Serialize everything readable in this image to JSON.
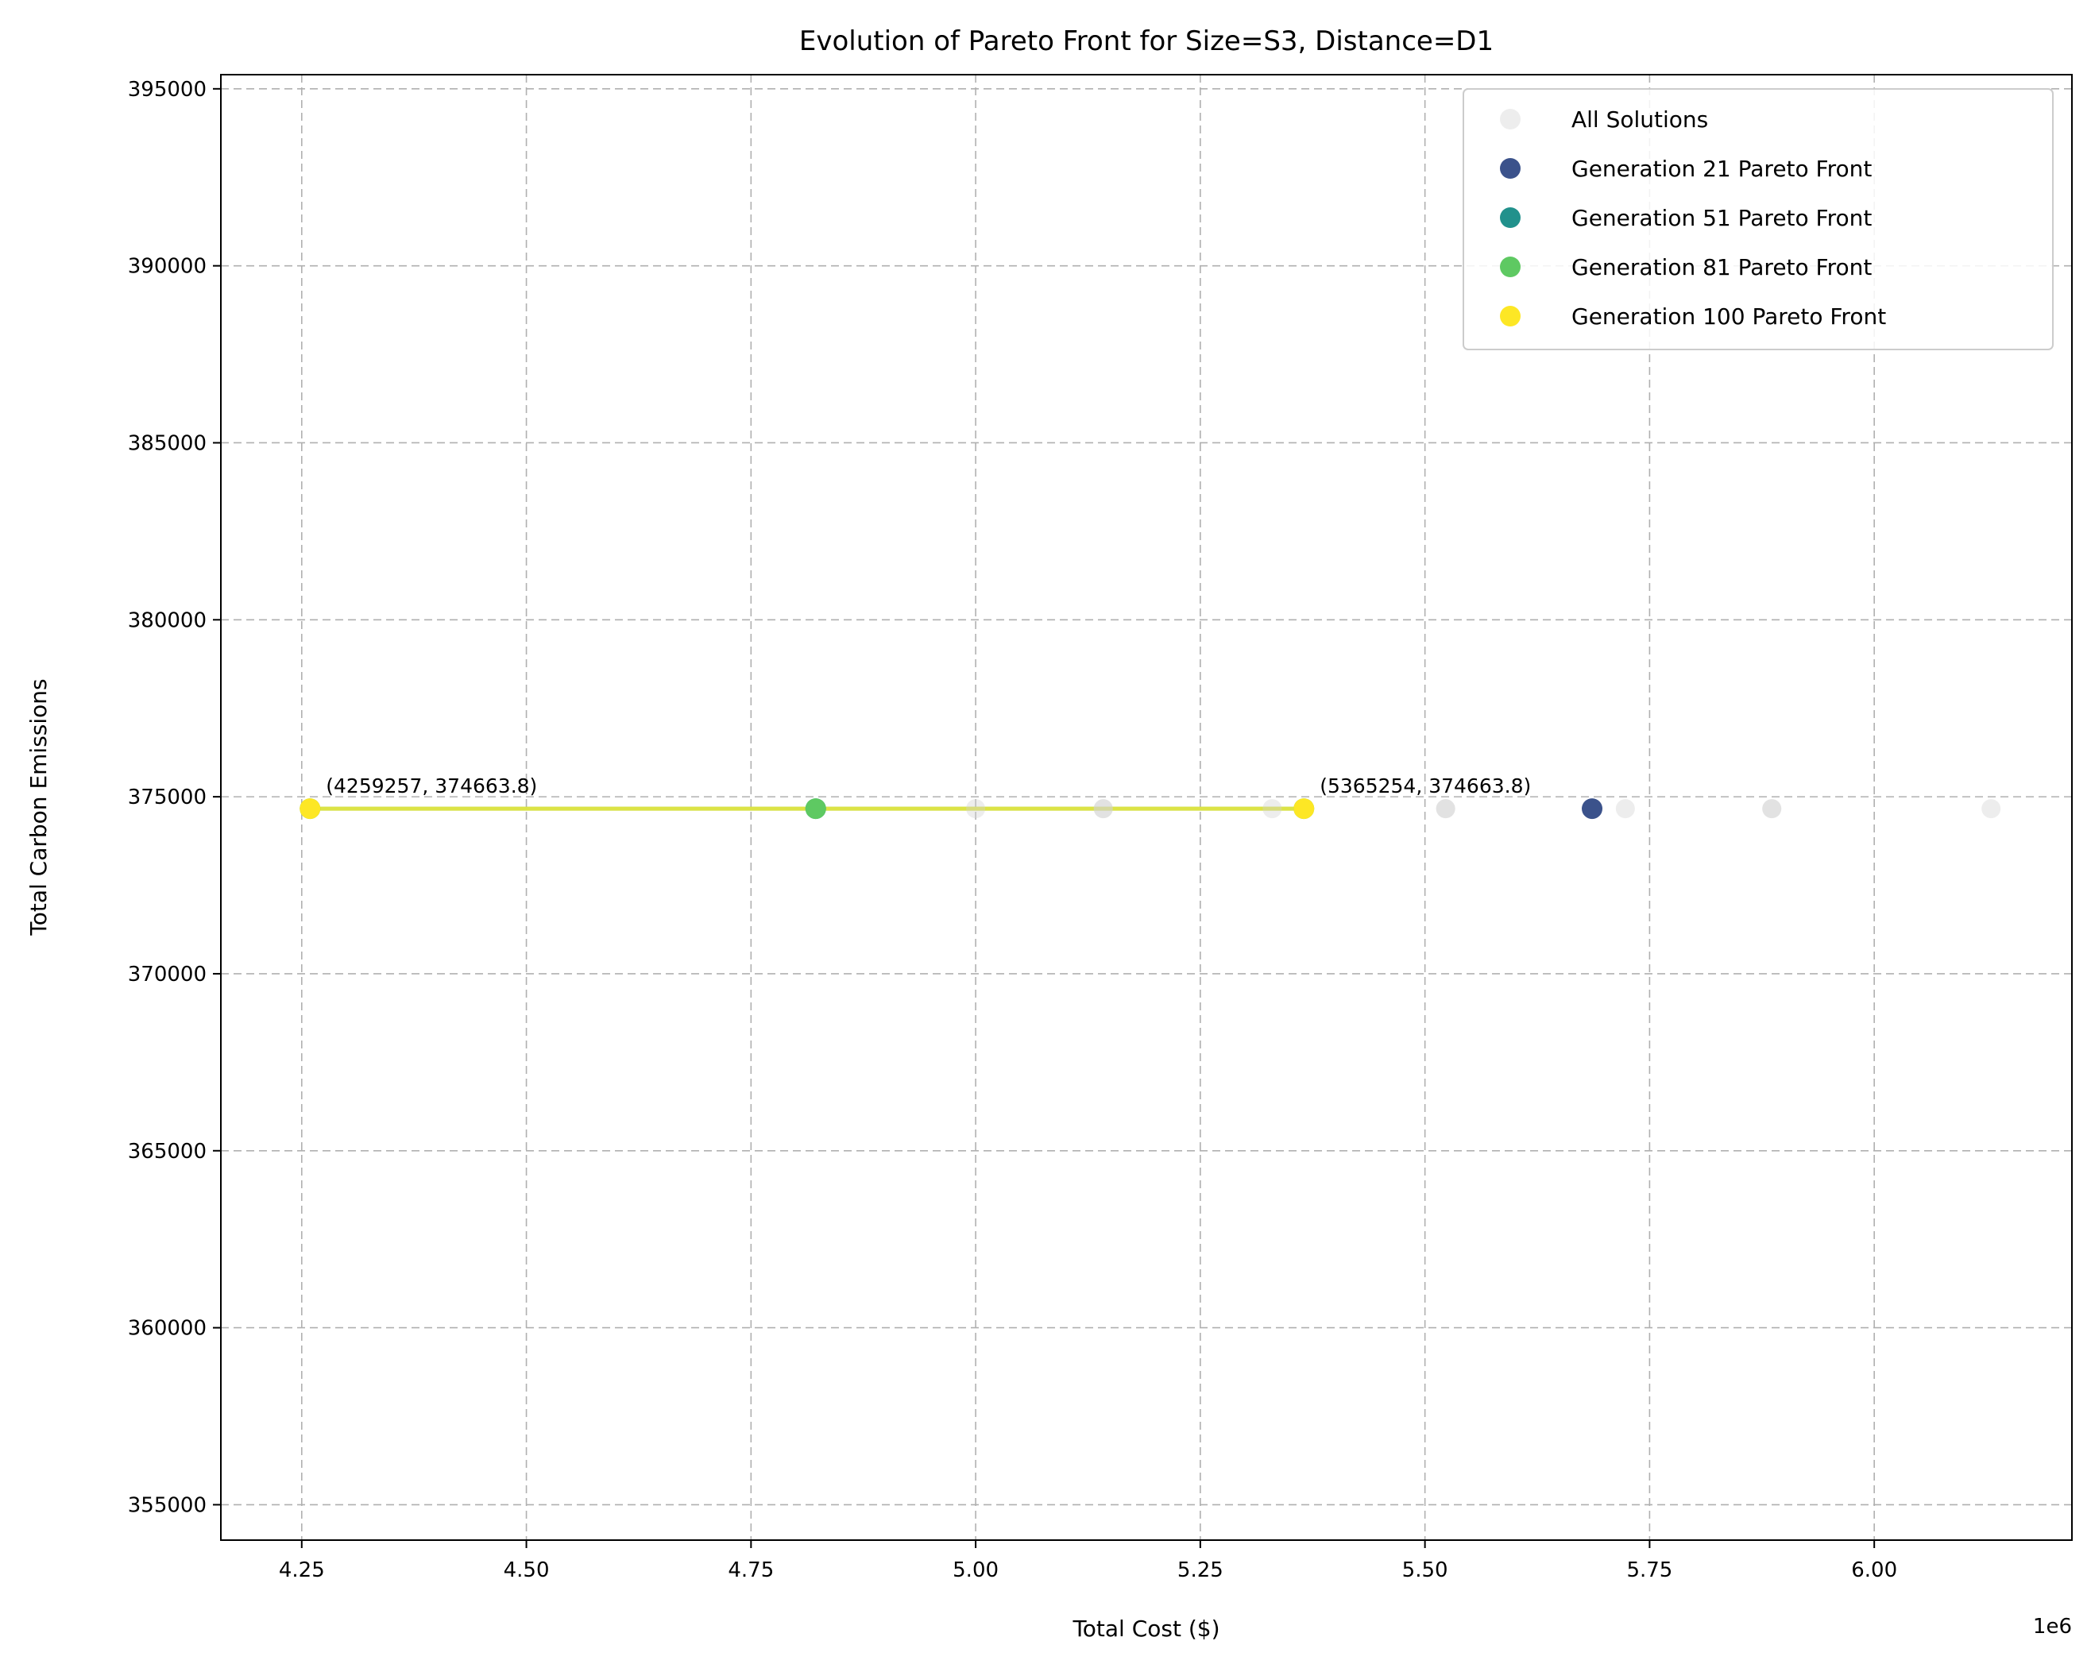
{
  "chart_data": {
    "type": "scatter",
    "title": "Evolution of Pareto Front for Size=S3, Distance=D1",
    "xlabel": "Total Cost ($)",
    "ylabel": "Total Carbon Emissions",
    "x_offset_label": "1e6",
    "xlim": [
      4160000,
      6220000
    ],
    "ylim": [
      354000,
      395400
    ],
    "x_ticks": [
      4250000,
      4500000,
      4750000,
      5000000,
      5250000,
      5500000,
      5750000,
      6000000
    ],
    "x_tick_labels": [
      "4.25",
      "4.50",
      "4.75",
      "5.00",
      "5.25",
      "5.50",
      "5.75",
      "6.00"
    ],
    "y_ticks": [
      355000,
      360000,
      365000,
      370000,
      375000,
      380000,
      385000,
      390000,
      395000
    ],
    "y_tick_labels": [
      "355000",
      "360000",
      "365000",
      "370000",
      "375000",
      "380000",
      "385000",
      "390000",
      "395000"
    ],
    "grid": true,
    "legend_position": "top-right",
    "series": [
      {
        "name": "All Solutions",
        "color": "#d3d3d3",
        "x": [
          4259257,
          4822000,
          5000000,
          5142000,
          5330000,
          5365254,
          5523000,
          5686000,
          5723000,
          5886000,
          6130000,
          5142000,
          5523000,
          5886000
        ],
        "y": [
          374663.8,
          374663.8,
          374663.8,
          374663.8,
          374663.8,
          374663.8,
          374663.8,
          374663.8,
          374663.8,
          374663.8,
          374663.8,
          374663.8,
          374663.8,
          374663.8
        ]
      },
      {
        "name": "Generation 21 Pareto Front",
        "color": "#3b528b",
        "x": [
          5686000
        ],
        "y": [
          374663.8
        ]
      },
      {
        "name": "Generation 51 Pareto Front",
        "color": "#21918c",
        "x": [
          4822000
        ],
        "y": [
          374663.8
        ]
      },
      {
        "name": "Generation 81 Pareto Front",
        "color": "#5ec962",
        "x": [
          4259257,
          4822000,
          5365254
        ],
        "y": [
          374663.8,
          374663.8,
          374663.8
        ]
      },
      {
        "name": "Generation 100 Pareto Front",
        "color": "#fde725",
        "x": [
          4259257,
          5365254
        ],
        "y": [
          374663.8,
          374663.8
        ]
      }
    ],
    "annotations": [
      {
        "text": "(4259257, 374663.8)",
        "x": 4259257,
        "y": 374663.8
      },
      {
        "text": "(5365254, 374663.8)",
        "x": 5365254,
        "y": 374663.8
      }
    ]
  }
}
